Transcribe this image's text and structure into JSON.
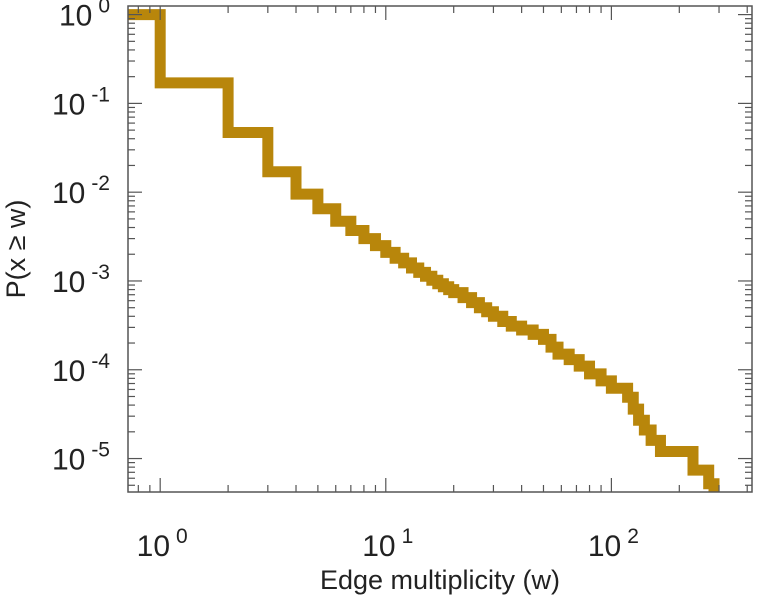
{
  "chart_data": {
    "type": "line",
    "step": true,
    "xscale": "log",
    "yscale": "log",
    "xlabel": "Edge multiplicity (w)",
    "ylabel": "P(x ≥ w)",
    "xlim": [
      0.72,
      420
    ],
    "ylim": [
      4.2e-06,
      1.25
    ],
    "grid": false,
    "line_color": "#b8860b",
    "x_ticks": [
      {
        "value": 1,
        "base": "10",
        "exp": "0"
      },
      {
        "value": 10,
        "base": "10",
        "exp": "1"
      },
      {
        "value": 100,
        "base": "10",
        "exp": "2"
      }
    ],
    "y_ticks": [
      {
        "value": 1,
        "base": "10",
        "exp": "0"
      },
      {
        "value": 0.1,
        "base": "10",
        "exp": "-1"
      },
      {
        "value": 0.01,
        "base": "10",
        "exp": "-2"
      },
      {
        "value": 0.001,
        "base": "10",
        "exp": "-3"
      },
      {
        "value": 0.0001,
        "base": "10",
        "exp": "-4"
      },
      {
        "value": 1e-05,
        "base": "10",
        "exp": "-5"
      }
    ],
    "series": [
      {
        "points": [
          [
            0.72,
            1
          ],
          [
            1,
            1
          ],
          [
            1,
            0.17
          ],
          [
            2,
            0.17
          ],
          [
            2,
            0.047
          ],
          [
            3,
            0.047
          ],
          [
            3,
            0.017
          ],
          [
            4,
            0.017
          ],
          [
            4,
            0.0095
          ],
          [
            5,
            0.0095
          ],
          [
            5,
            0.0065
          ],
          [
            6,
            0.0065
          ],
          [
            6,
            0.0047
          ],
          [
            7,
            0.0047
          ],
          [
            7,
            0.0037
          ],
          [
            8,
            0.0037
          ],
          [
            8,
            0.003
          ],
          [
            9,
            0.003
          ],
          [
            9,
            0.0025
          ],
          [
            10,
            0.0025
          ],
          [
            10,
            0.0021
          ],
          [
            11,
            0.0021
          ],
          [
            11,
            0.0018
          ],
          [
            12,
            0.0018
          ],
          [
            12,
            0.0016
          ],
          [
            13,
            0.0016
          ],
          [
            13,
            0.0014
          ],
          [
            14,
            0.0014
          ],
          [
            14,
            0.00125
          ],
          [
            15,
            0.00125
          ],
          [
            15,
            0.00113
          ],
          [
            16,
            0.00113
          ],
          [
            16,
            0.00102
          ],
          [
            17,
            0.00102
          ],
          [
            17,
            0.00093
          ],
          [
            18,
            0.00093
          ],
          [
            18,
            0.00086
          ],
          [
            19,
            0.00086
          ],
          [
            19,
            0.0008
          ],
          [
            20,
            0.0008
          ],
          [
            20,
            0.00074
          ],
          [
            22,
            0.00074
          ],
          [
            22,
            0.00065
          ],
          [
            24,
            0.00065
          ],
          [
            24,
            0.00057
          ],
          [
            26,
            0.00057
          ],
          [
            26,
            0.0005
          ],
          [
            28,
            0.0005
          ],
          [
            28,
            0.00045
          ],
          [
            30,
            0.00045
          ],
          [
            30,
            0.0004
          ],
          [
            33,
            0.0004
          ],
          [
            33,
            0.00035
          ],
          [
            36,
            0.00035
          ],
          [
            36,
            0.00031
          ],
          [
            40,
            0.00031
          ],
          [
            40,
            0.00028
          ],
          [
            45,
            0.00028
          ],
          [
            45,
            0.00025
          ],
          [
            50,
            0.00025
          ],
          [
            50,
            0.00022
          ],
          [
            54,
            0.00022
          ],
          [
            54,
            0.00018
          ],
          [
            58,
            0.00018
          ],
          [
            58,
            0.00015
          ],
          [
            65,
            0.00015
          ],
          [
            65,
            0.00013
          ],
          [
            72,
            0.00013
          ],
          [
            72,
            0.00011
          ],
          [
            80,
            0.00011
          ],
          [
            80,
            9e-05
          ],
          [
            90,
            9e-05
          ],
          [
            90,
            7.5e-05
          ],
          [
            100,
            7.5e-05
          ],
          [
            100,
            6.2e-05
          ],
          [
            118,
            6.2e-05
          ],
          [
            118,
            4.9e-05
          ],
          [
            125,
            4.9e-05
          ],
          [
            125,
            3.6e-05
          ],
          [
            132,
            3.6e-05
          ],
          [
            132,
            2.7e-05
          ],
          [
            140,
            2.7e-05
          ],
          [
            140,
            2.1e-05
          ],
          [
            150,
            2.1e-05
          ],
          [
            150,
            1.6e-05
          ],
          [
            165,
            1.6e-05
          ],
          [
            165,
            1.2e-05
          ],
          [
            230,
            1.2e-05
          ],
          [
            230,
            7.4e-06
          ],
          [
            270,
            7.4e-06
          ],
          [
            270,
            5.2e-06
          ],
          [
            285,
            5.2e-06
          ],
          [
            285,
            4.2e-06
          ]
        ]
      }
    ]
  }
}
